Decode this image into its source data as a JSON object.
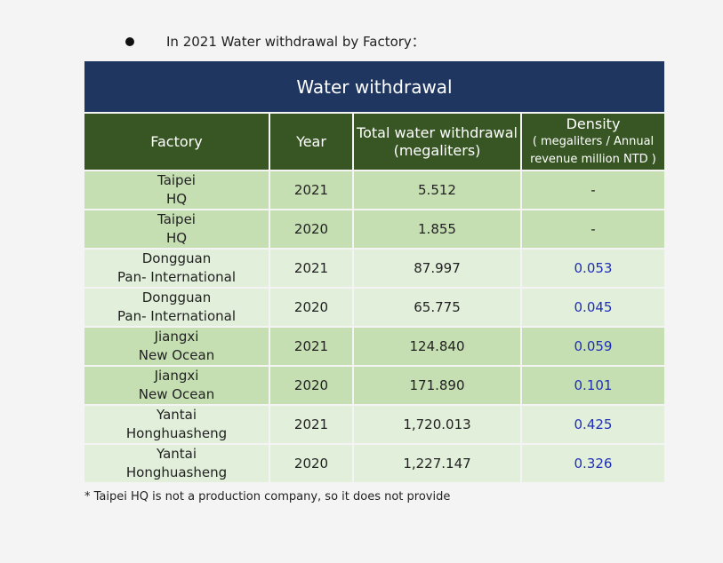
{
  "intro": {
    "text": "In 2021  Water withdrawal  by Factory："
  },
  "table": {
    "title": "Water withdrawal",
    "headers": {
      "factory": "Factory",
      "year": "Year",
      "total": "Total water withdrawal (megaliters)",
      "density_main": "Density",
      "density_sub1": "( megaliters / Annual",
      "density_sub2": "revenue million NTD )"
    },
    "rows": [
      {
        "factory_line1": "Taipei",
        "factory_line2": "HQ",
        "year": "2021",
        "total": "5.512",
        "density": "-"
      },
      {
        "factory_line1": "Taipei",
        "factory_line2": "HQ",
        "year": "2020",
        "total": "1.855",
        "density": "-"
      },
      {
        "factory_line1": "Dongguan",
        "factory_line2": "Pan- International",
        "year": "2021",
        "total": "87.997",
        "density": "0.053"
      },
      {
        "factory_line1": "Dongguan",
        "factory_line2": "Pan- International",
        "year": "2020",
        "total": "65.775",
        "density": "0.045"
      },
      {
        "factory_line1": "Jiangxi",
        "factory_line2": "New Ocean",
        "year": "2021",
        "total": "124.840",
        "density": "0.059"
      },
      {
        "factory_line1": "Jiangxi",
        "factory_line2": "New Ocean",
        "year": "2020",
        "total": "171.890",
        "density": "0.101"
      },
      {
        "factory_line1": "Yantai",
        "factory_line2": "Honghuasheng",
        "year": "2021",
        "total": "1,720.013",
        "density": "0.425"
      },
      {
        "factory_line1": "Yantai",
        "factory_line2": "Honghuasheng",
        "year": "2020",
        "total": "1,227.147",
        "density": "0.326"
      }
    ]
  },
  "footnote": "* Taipei HQ is not a production company, so it does not provide",
  "colors": {
    "title_bg": "#1e3660",
    "header_bg": "#375623",
    "row_dark": "#c5dfb3",
    "row_light": "#e2efda",
    "density_text": "#1f2fb8"
  }
}
